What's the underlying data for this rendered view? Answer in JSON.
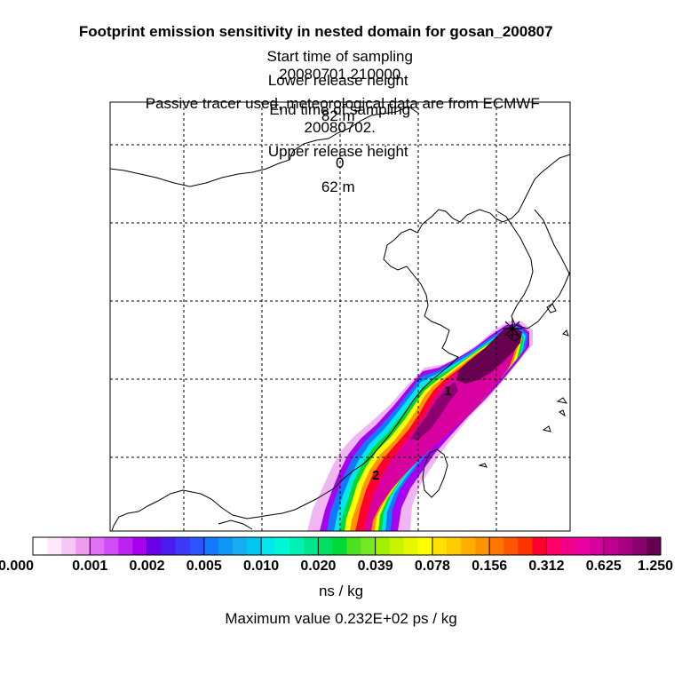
{
  "header": {
    "title": "Footprint emission sensitivity in nested domain for gosan_200807",
    "start_label": "Start time of sampling",
    "start_value": "20080701.210000",
    "end_label": "End time of sampling",
    "end_value": "20080702.",
    "end_value_2": "0",
    "lower_label": "Lower release height",
    "lower_value": "82 m",
    "upper_label": "Upper release height",
    "upper_value": "62 m",
    "note": "Passive tracer used, meteorological data are from ECMWF"
  },
  "map": {
    "markers": [
      "1",
      "2"
    ],
    "receptor": "gosan"
  },
  "colorbar": {
    "ticks": [
      "0.000",
      "0.001",
      "0.002",
      "0.005",
      "0.010",
      "0.020",
      "0.039",
      "0.078",
      "0.156",
      "0.312",
      "0.625",
      "1.250"
    ],
    "colors": [
      "#ffffff",
      "#fde8fb",
      "#f8c6f6",
      "#ee9cf0",
      "#e070f6",
      "#d04cf4",
      "#bb22f2",
      "#a800ee",
      "#6a00e8",
      "#4b1cf0",
      "#3a3af8",
      "#2d55ff",
      "#1477ff",
      "#1196f6",
      "#16aef2",
      "#00c7f0",
      "#00e8ee",
      "#00f7d8",
      "#00f0b4",
      "#00e68e",
      "#00e060",
      "#00d838",
      "#4ce020",
      "#74e820",
      "#a0f000",
      "#c8f400",
      "#e8f800",
      "#ffff00",
      "#ffe000",
      "#ffcc00",
      "#ffae00",
      "#ff9400",
      "#ff7600",
      "#ff5400",
      "#ff3300",
      "#ff0030",
      "#ff0066",
      "#f00088",
      "#e800a0",
      "#d8009e",
      "#c00090",
      "#a80082",
      "#8a006e",
      "#66004f"
    ],
    "units": "ns / kg"
  },
  "footer": {
    "max_label": "Maximum value",
    "max_value": "0.232E+02 ps / kg"
  }
}
